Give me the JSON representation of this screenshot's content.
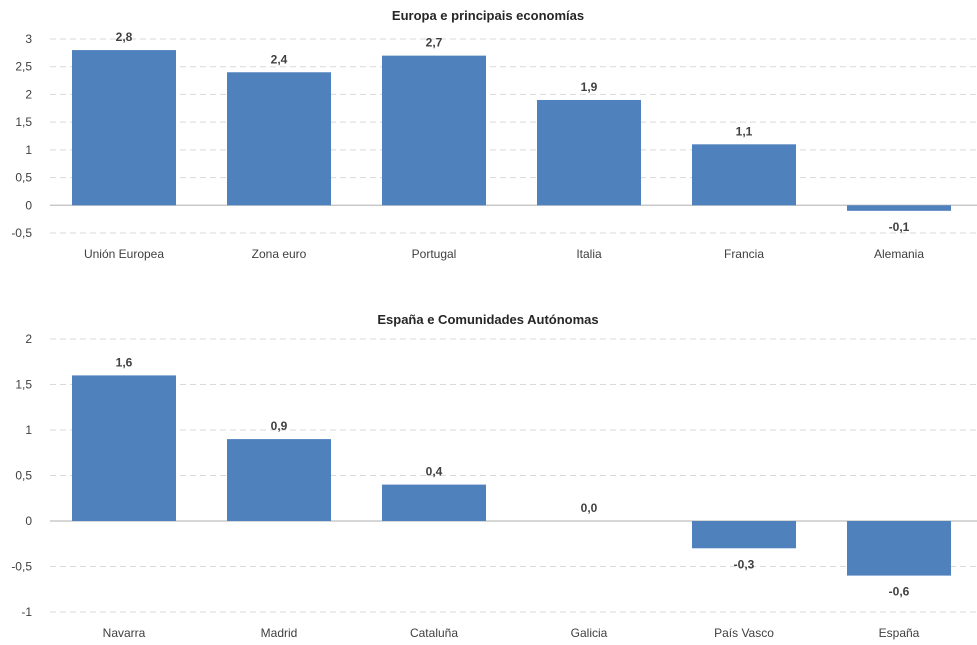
{
  "chart_data": [
    {
      "type": "bar",
      "title": "Europa e principais economías",
      "categories": [
        "Unión Europea",
        "Zona euro",
        "Portugal",
        "Italia",
        "Francia",
        "Alemania"
      ],
      "values": [
        2.8,
        2.4,
        2.7,
        1.9,
        1.1,
        -0.1
      ],
      "data_labels": [
        "2,8",
        "2,4",
        "2,7",
        "1,9",
        "1,1",
        "-0,1"
      ],
      "xlabel": "",
      "ylabel": "",
      "ylim": [
        -0.5,
        3
      ],
      "yticks": [
        3,
        2.5,
        2,
        1.5,
        1,
        0.5,
        0,
        -0.5
      ],
      "ytick_labels": [
        "3",
        "2,5",
        "2",
        "1,5",
        "1",
        "0,5",
        "0",
        "-0,5"
      ],
      "grid": true,
      "bar_color": "#4f81bd",
      "grid_color": "#d9d9d9",
      "axis_color": "#bfbfbf"
    },
    {
      "type": "bar",
      "title": "España e Comunidades Autónomas",
      "categories": [
        "Navarra",
        "Madrid",
        "Cataluña",
        "Galicia",
        "País Vasco",
        "España"
      ],
      "values": [
        1.6,
        0.9,
        0.4,
        0.0,
        -0.3,
        -0.6
      ],
      "data_labels": [
        "1,6",
        "0,9",
        "0,4",
        "0,0",
        "-0,3",
        "-0,6"
      ],
      "xlabel": "",
      "ylabel": "",
      "ylim": [
        -1,
        2
      ],
      "yticks": [
        2,
        1.5,
        1,
        0.5,
        0,
        -0.5,
        -1
      ],
      "ytick_labels": [
        "2",
        "1,5",
        "1",
        "0,5",
        "0",
        "-0,5",
        "-1"
      ],
      "grid": true,
      "bar_color": "#4f81bd",
      "grid_color": "#d9d9d9",
      "axis_color": "#bfbfbf"
    }
  ]
}
